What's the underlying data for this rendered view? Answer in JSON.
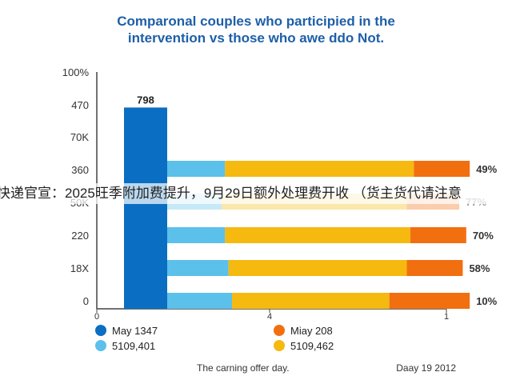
{
  "title_lines": [
    "Comparonal couples who participied in the",
    "intervention vs those who awe ddo Not."
  ],
  "banner_text": "快递官宣：2025旺季附加费提升，9月29日额外处理费开收 （货主货代请注意",
  "chart_data": {
    "type": "bar",
    "title": "Comparonal couples who participied in the intervention vs those who awe ddo Not.",
    "y_tick_labels": [
      "100%",
      "470",
      "70K",
      "360",
      "50K",
      "220",
      "18X",
      "0"
    ],
    "x_tick_labels": [
      "0",
      "4",
      "1"
    ],
    "tall_bar": {
      "value_label": "798",
      "color": "#0a6fc2",
      "height_fraction": 0.85
    },
    "rows": [
      {
        "y_label": "360",
        "segments": [
          0.17,
          0.54,
          0.16
        ],
        "pct_label": "49%",
        "faded": false
      },
      {
        "y_label": "50K",
        "segments": [
          0.16,
          0.53,
          0.15
        ],
        "pct_label": "77%",
        "faded": true
      },
      {
        "y_label": "220",
        "segments": [
          0.17,
          0.53,
          0.16
        ],
        "pct_label": "70%",
        "faded": false
      },
      {
        "y_label": "18X",
        "segments": [
          0.18,
          0.51,
          0.16
        ],
        "pct_label": "58%",
        "faded": false
      },
      {
        "y_label": "0",
        "segments": [
          0.19,
          0.45,
          0.23
        ],
        "pct_label": "10%",
        "faded": false
      }
    ],
    "series": [
      {
        "name": "May 1347",
        "color": "#0a6fc2"
      },
      {
        "name": "5109,401",
        "color": "#5bc0ea"
      },
      {
        "name": "Miay 208",
        "color": "#f26f10"
      },
      {
        "name": "5109,462",
        "color": "#f5b90f"
      }
    ],
    "legend_position": "bottom",
    "grid": false,
    "footer_left": "The carning offer day.",
    "footer_right": "Daay 19 2012"
  }
}
